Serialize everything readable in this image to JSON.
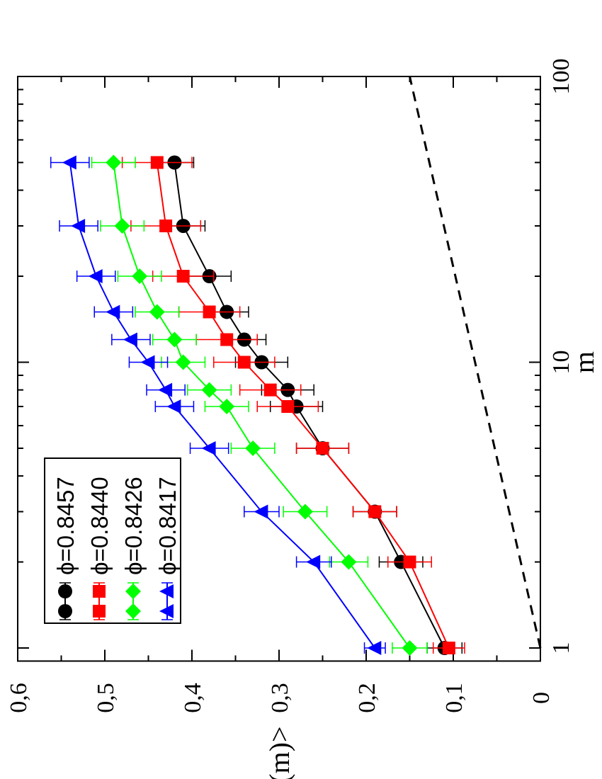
{
  "chart_data": {
    "type": "line",
    "xlabel": "m",
    "ylabel": "<F(m)>",
    "xscale": "log",
    "xlim": [
      0.9,
      100
    ],
    "ylim": [
      0,
      0.6
    ],
    "x_ticks": [
      {
        "value": 1,
        "label": "1"
      },
      {
        "value": 10,
        "label": "10"
      },
      {
        "value": 100,
        "label": "100"
      }
    ],
    "y_ticks": [
      {
        "value": 0,
        "label": "0"
      },
      {
        "value": 0.1,
        "label": "0,1"
      },
      {
        "value": 0.2,
        "label": "0,2"
      },
      {
        "value": 0.3,
        "label": "0,3"
      },
      {
        "value": 0.4,
        "label": "0,4"
      },
      {
        "value": 0.5,
        "label": "0,5"
      },
      {
        "value": 0.6,
        "label": "0,6"
      }
    ],
    "orientation": "rotated 90 degrees counter-clockwise",
    "legend_position": "top-left",
    "grid": false,
    "x": [
      1,
      2,
      3,
      5,
      7,
      8,
      10,
      12,
      15,
      20,
      30,
      50
    ],
    "series": [
      {
        "name": "ϕ=0.8457",
        "color": "#000000",
        "marker": "circle",
        "values": [
          0.11,
          0.16,
          0.19,
          0.25,
          0.28,
          0.29,
          0.32,
          0.34,
          0.36,
          0.38,
          0.41,
          0.42
        ],
        "errors": [
          0.02,
          0.025,
          0.025,
          0.03,
          0.03,
          0.03,
          0.03,
          0.025,
          0.025,
          0.025,
          0.025,
          0.022
        ]
      },
      {
        "name": "ϕ=0.8440",
        "color": "#ff0000",
        "marker": "square",
        "values": [
          0.105,
          0.15,
          0.19,
          0.25,
          0.29,
          0.31,
          0.34,
          0.36,
          0.38,
          0.41,
          0.43,
          0.44
        ],
        "errors": [
          0.018,
          0.025,
          0.025,
          0.03,
          0.035,
          0.035,
          0.035,
          0.035,
          0.035,
          0.035,
          0.04,
          0.04
        ]
      },
      {
        "name": "ϕ=0.8426",
        "color": "#00ff00",
        "marker": "diamond",
        "values": [
          0.15,
          0.22,
          0.27,
          0.33,
          0.36,
          0.38,
          0.41,
          0.42,
          0.44,
          0.46,
          0.48,
          0.49
        ],
        "errors": [
          0.02,
          0.022,
          0.025,
          0.025,
          0.025,
          0.025,
          0.025,
          0.025,
          0.025,
          0.025,
          0.025,
          0.025
        ]
      },
      {
        "name": "ϕ=0.8417",
        "color": "#0000ff",
        "marker": "triangle",
        "values": [
          0.19,
          0.26,
          0.32,
          0.38,
          0.42,
          0.43,
          0.45,
          0.47,
          0.49,
          0.51,
          0.53,
          0.54
        ],
        "errors": [
          0.012,
          0.02,
          0.02,
          0.022,
          0.022,
          0.022,
          0.022,
          0.022,
          0.022,
          0.022,
          0.022,
          0.022
        ]
      }
    ],
    "reference_line": {
      "style": "dashed",
      "color": "#000000",
      "x": [
        1,
        100
      ],
      "y": [
        0,
        0.15
      ]
    }
  }
}
